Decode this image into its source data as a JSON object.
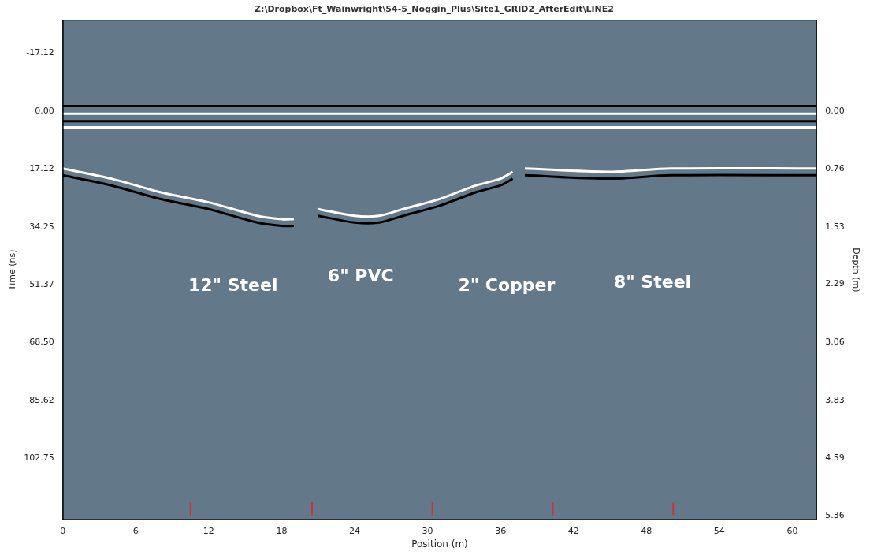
{
  "chart_data": {
    "type": "line",
    "title": "Z:\\Dropbox\\Ft_Wainwright\\54-5_Noggin_Plus\\Site1_GRID2_AfterEdit\\LINE2",
    "x_label": "Position (m)",
    "y_label": "Time (ns)",
    "y2_label": "Depth (m)",
    "xlim": [
      0,
      62
    ],
    "xticks": [
      0,
      6,
      12,
      18,
      24,
      30,
      36,
      42,
      48,
      54,
      60
    ],
    "ylim": [
      -27,
      121
    ],
    "yticks": [
      -17.12,
      {
        "value": 0,
        "label": "0.00"
      },
      17.12,
      34.25,
      51.37,
      {
        "value": 68.5,
        "label": "68.50"
      },
      85.62,
      102.75
    ],
    "y2lim": [
      -1.21,
      5.41
    ],
    "y2ticks": [
      {
        "value": 0,
        "label": "0.00"
      },
      0.76,
      1.53,
      2.29,
      3.06,
      3.83,
      4.59,
      5.36
    ],
    "grid": false,
    "color": "#63798a",
    "series": [
      {
        "color": "#000000",
        "x": [
          0,
          62
        ],
        "values": [
          -1.5,
          -1.5
        ]
      },
      {
        "color": "#ffffff",
        "x": [
          0,
          62
        ],
        "values": [
          0.8,
          0.8
        ]
      },
      {
        "color": "#000000",
        "x": [
          0,
          62
        ],
        "values": [
          3,
          3
        ]
      },
      {
        "color": "#ffffff",
        "x": [
          0,
          62
        ],
        "values": [
          4.8,
          4.8
        ]
      },
      {
        "color": "#ffffff",
        "x": [
          0,
          4,
          8,
          12,
          16,
          18,
          19
        ],
        "values": [
          17,
          20,
          24,
          27,
          31,
          32,
          32
        ]
      },
      {
        "color": "#000000",
        "x": [
          0,
          4,
          8,
          12,
          16,
          18,
          19
        ],
        "values": [
          19,
          22,
          26,
          29,
          33,
          34,
          34
        ]
      },
      {
        "color": "#ffffff",
        "x": [
          21,
          24,
          26,
          28,
          31,
          34,
          36,
          37
        ],
        "values": [
          29,
          31,
          31,
          29,
          26,
          22,
          20,
          18
        ]
      },
      {
        "color": "#000000",
        "x": [
          21,
          24,
          26,
          28,
          31,
          34,
          36,
          37
        ],
        "values": [
          31,
          33,
          33,
          31,
          28,
          24,
          22,
          20
        ]
      },
      {
        "color": "#ffffff",
        "x": [
          38,
          45,
          50,
          62
        ],
        "values": [
          17,
          18,
          17,
          17
        ]
      },
      {
        "color": "#000000",
        "x": [
          38,
          45,
          50,
          62
        ],
        "values": [
          19,
          20,
          19,
          19
        ]
      }
    ],
    "annotations": [
      {
        "text": "12\" Steel",
        "x": 14,
        "y": 52
      },
      {
        "text": "6\" PVC",
        "x": 24.5,
        "y": 49
      },
      {
        "text": "2\" Copper",
        "x": 36.5,
        "y": 52
      },
      {
        "text": "8\" Steel",
        "x": 48.5,
        "y": 51
      }
    ],
    "markers": {
      "color": "#d03030",
      "x": [
        10.5,
        20.5,
        30.4,
        40.3,
        50.2
      ]
    }
  }
}
